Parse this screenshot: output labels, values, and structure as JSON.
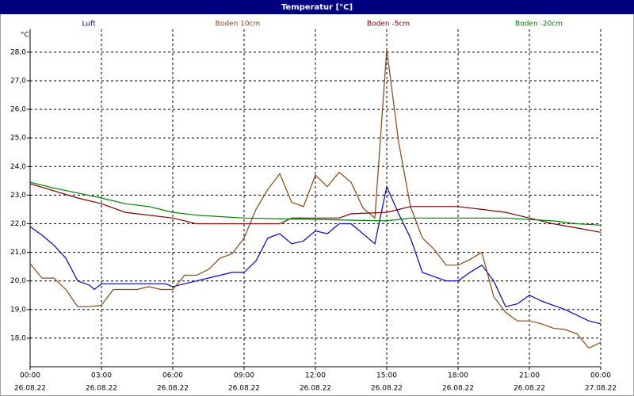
{
  "chart_data": {
    "type": "line",
    "title": "Temperatur [°C]",
    "y_label": "°C",
    "xlim": [
      0,
      24
    ],
    "ylim": [
      17.0,
      28.8
    ],
    "xticks": [
      {
        "value": 0,
        "label": "00:00",
        "date": "26.08.22"
      },
      {
        "value": 3,
        "label": "03:00",
        "date": "26.08.22"
      },
      {
        "value": 6,
        "label": "06:00",
        "date": "26.08.22"
      },
      {
        "value": 9,
        "label": "09:00",
        "date": "26.08.22"
      },
      {
        "value": 12,
        "label": "12:00",
        "date": "26.08.22"
      },
      {
        "value": 15,
        "label": "15:00",
        "date": "26.08.22"
      },
      {
        "value": 18,
        "label": "18:00",
        "date": "26.08.22"
      },
      {
        "value": 21,
        "label": "21:00",
        "date": "26.08.22"
      },
      {
        "value": 24,
        "label": "00:00",
        "date": "27.08.22"
      }
    ],
    "yticks": [
      {
        "value": 18,
        "label": "18,0"
      },
      {
        "value": 19,
        "label": "19,0"
      },
      {
        "value": 20,
        "label": "20,0"
      },
      {
        "value": 21,
        "label": "21,0"
      },
      {
        "value": 22,
        "label": "22,0"
      },
      {
        "value": 23,
        "label": "23,0"
      },
      {
        "value": 24,
        "label": "24,0"
      },
      {
        "value": 25,
        "label": "25,0"
      },
      {
        "value": 26,
        "label": "26,0"
      },
      {
        "value": 27,
        "label": "27,0"
      },
      {
        "value": 28,
        "label": "28,0"
      }
    ],
    "grid": true,
    "series": [
      {
        "name": "Luft",
        "color": "#0000cc",
        "x": [
          0,
          0.5,
          1,
          1.5,
          2,
          2.5,
          2.7,
          3,
          5.7,
          6,
          6.5,
          7,
          8.5,
          9,
          9.5,
          10,
          10.5,
          11,
          11.5,
          12,
          12.5,
          13,
          13.5,
          14,
          14.5,
          15,
          15.5,
          16,
          16.5,
          17,
          17.5,
          18,
          18.5,
          19,
          19.5,
          20,
          20.5,
          21,
          21.5,
          22,
          22.5,
          23,
          23.5,
          24
        ],
        "values": [
          21.9,
          21.6,
          21.25,
          20.8,
          20.0,
          19.85,
          19.7,
          19.9,
          19.9,
          19.8,
          19.9,
          20.0,
          20.3,
          20.3,
          20.7,
          21.5,
          21.65,
          21.3,
          21.4,
          21.75,
          21.65,
          22.0,
          22.0,
          21.65,
          21.3,
          23.3,
          22.35,
          21.5,
          20.3,
          20.15,
          20.0,
          20.0,
          20.3,
          20.55,
          20.0,
          19.1,
          19.2,
          19.5,
          19.3,
          19.15,
          19.0,
          18.8,
          18.6,
          18.5
        ]
      },
      {
        "name": "Boden 10cm",
        "color": "#8b4513",
        "x": [
          0,
          0.5,
          1,
          1.5,
          2,
          2.5,
          3,
          3.5,
          4,
          4.5,
          5,
          5.5,
          6,
          6.5,
          7,
          7.5,
          8,
          8.5,
          9,
          9.5,
          10,
          10.5,
          11,
          11.5,
          12,
          12.5,
          13,
          13.5,
          14,
          14.5,
          15,
          15.5,
          16,
          16.5,
          17,
          17.5,
          18,
          18.5,
          19,
          19.5,
          20,
          20.5,
          21,
          21.5,
          22,
          22.5,
          23,
          23.5,
          24
        ],
        "values": [
          20.6,
          20.1,
          20.1,
          19.7,
          19.1,
          19.1,
          19.15,
          19.7,
          19.7,
          19.7,
          19.8,
          19.7,
          19.7,
          20.2,
          20.2,
          20.4,
          20.8,
          20.95,
          21.5,
          22.5,
          23.2,
          23.75,
          22.75,
          22.6,
          23.7,
          23.3,
          23.8,
          23.45,
          22.55,
          22.2,
          28.1,
          24.85,
          22.6,
          21.5,
          21.1,
          20.55,
          20.55,
          20.75,
          21.0,
          19.45,
          18.9,
          18.6,
          18.6,
          18.5,
          18.35,
          18.3,
          18.15,
          17.65,
          17.85
        ]
      },
      {
        "name": "Boden -5cm",
        "color": "#800000",
        "x": [
          0,
          2,
          3,
          4,
          6,
          7,
          9,
          10.5,
          11,
          13,
          13.5,
          15,
          16,
          18,
          19,
          20,
          21,
          22,
          23,
          24
        ],
        "values": [
          23.4,
          22.9,
          22.7,
          22.4,
          22.2,
          22.0,
          22.0,
          22.0,
          22.2,
          22.2,
          22.35,
          22.4,
          22.6,
          22.6,
          22.5,
          22.4,
          22.2,
          22.0,
          21.85,
          21.7
        ]
      },
      {
        "name": "Boden -20cm",
        "color": "#008000",
        "x": [
          0,
          1,
          3,
          4,
          5,
          6,
          7,
          8,
          9,
          12,
          15,
          16,
          20,
          22,
          23,
          24
        ],
        "values": [
          23.45,
          23.25,
          22.9,
          22.7,
          22.6,
          22.4,
          22.3,
          22.25,
          22.2,
          22.15,
          22.1,
          22.2,
          22.2,
          22.1,
          22.0,
          21.95
        ]
      }
    ]
  }
}
